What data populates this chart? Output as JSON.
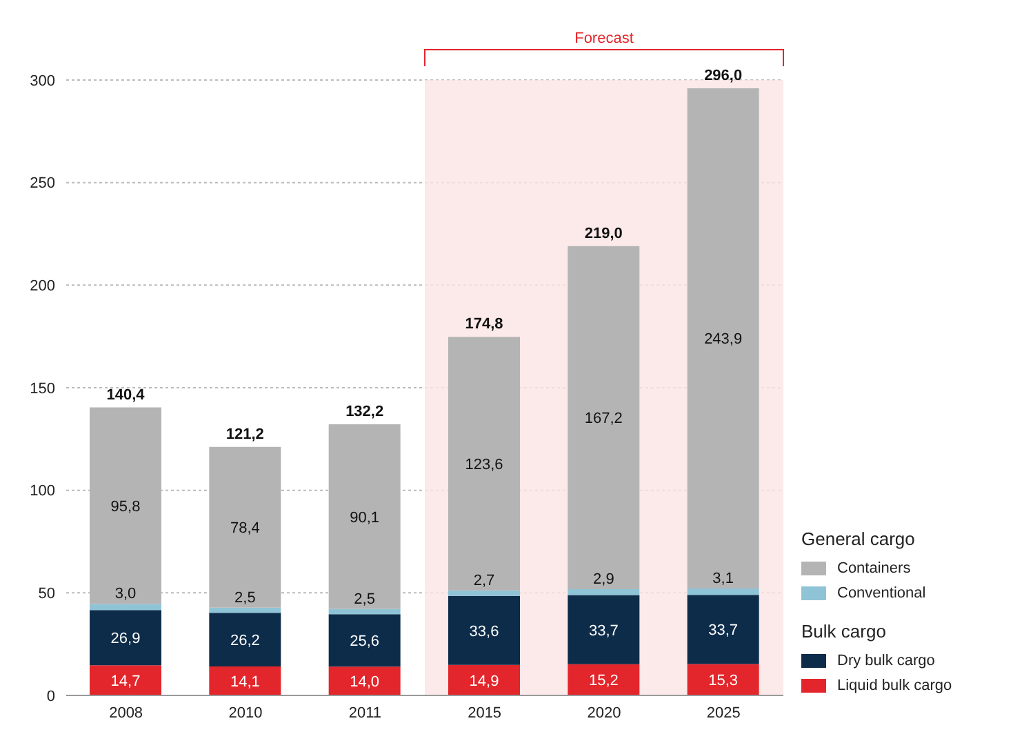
{
  "chart_data": {
    "type": "bar",
    "stacked": true,
    "categories": [
      "2008",
      "2010",
      "2011",
      "2015",
      "2020",
      "2025"
    ],
    "series": [
      {
        "name": "Liquid bulk cargo",
        "color": "#e3262b",
        "values": [
          14.7,
          14.1,
          14.0,
          14.9,
          15.2,
          15.3
        ],
        "value_labels": [
          "14,7",
          "14,1",
          "14,0",
          "14,9",
          "15,2",
          "15,3"
        ]
      },
      {
        "name": "Dry bulk cargo",
        "color": "#0d2c4a",
        "values": [
          26.9,
          26.2,
          25.6,
          33.6,
          33.7,
          33.7
        ],
        "value_labels": [
          "26,9",
          "26,2",
          "25,6",
          "33,6",
          "33,7",
          "33,7"
        ]
      },
      {
        "name": "Conventional",
        "color": "#8fc3d6",
        "values": [
          3.0,
          2.5,
          2.5,
          2.7,
          2.9,
          3.1
        ],
        "value_labels": [
          "3,0",
          "2,5",
          "2,5",
          "2,7",
          "2,9",
          "3,1"
        ]
      },
      {
        "name": "Containers",
        "color": "#b4b4b4",
        "values": [
          95.8,
          78.4,
          90.1,
          123.6,
          167.2,
          243.9
        ],
        "value_labels": [
          "95,8",
          "78,4",
          "90,1",
          "123,6",
          "167,2",
          "243,9"
        ]
      }
    ],
    "totals": [
      "140,4",
      "121,2",
      "132,2",
      "174,8",
      "219,0",
      "296,0"
    ],
    "ylim": [
      0,
      300
    ],
    "yticks": [
      0,
      50,
      100,
      150,
      200,
      250,
      300
    ],
    "grid": "y",
    "legend": "bottom right",
    "bands": [
      {
        "axis": "x",
        "from": "2015",
        "to": "2025",
        "label": "Forecast",
        "color": "#fbe4e4"
      }
    ],
    "annotations": [
      "General cargo",
      "Bulk cargo"
    ]
  }
}
